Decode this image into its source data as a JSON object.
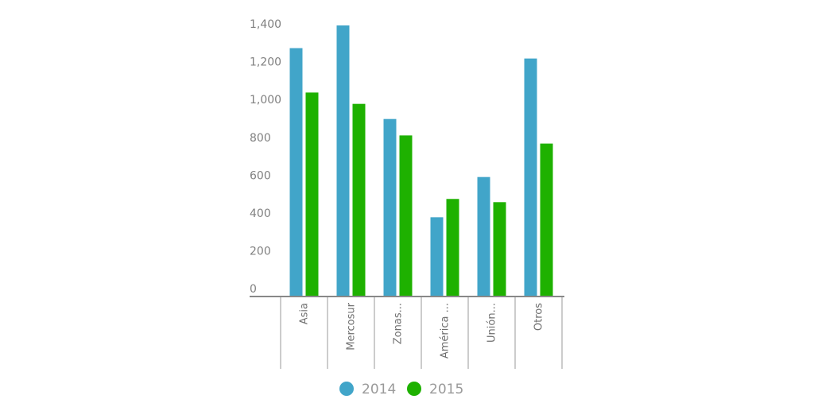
{
  "chart_data": {
    "type": "bar",
    "categories": [
      "Asia",
      "Mercosur",
      "Zonas...",
      "América ...",
      "Unión...",
      "Otros"
    ],
    "series": [
      {
        "name": "2014",
        "color": "#41a5c9",
        "values": [
          1310,
          1430,
          935,
          415,
          628,
          1255
        ]
      },
      {
        "name": "2015",
        "color": "#1eb100",
        "values": [
          1075,
          1015,
          848,
          512,
          495,
          805
        ]
      }
    ],
    "yticks": [
      0,
      200,
      400,
      600,
      800,
      1000,
      1200,
      1400
    ],
    "ytick_labels": [
      "0",
      "200",
      "400",
      "600",
      "800",
      "1,000",
      "1,200",
      "1,400"
    ],
    "ylim": [
      0,
      1430
    ],
    "legend_position": "bottom",
    "grid": false
  }
}
